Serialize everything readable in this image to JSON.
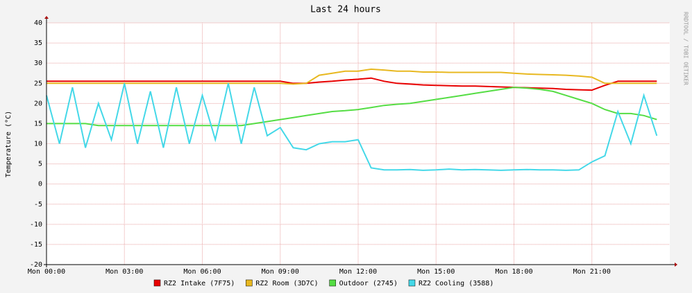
{
  "chart_data": {
    "type": "line",
    "title": "Last 24 hours",
    "y_label": "Temperature (°C)",
    "side_note": "RRDTOOL / TOBI OETIKER",
    "x": [
      0,
      0.5,
      1,
      1.5,
      2,
      2.5,
      3,
      3.5,
      4,
      4.5,
      5,
      5.5,
      6,
      6.5,
      7,
      7.5,
      8,
      8.5,
      9,
      9.5,
      10,
      10.5,
      11,
      11.5,
      12,
      12.5,
      13,
      13.5,
      14,
      14.5,
      15,
      15.5,
      16,
      16.5,
      17,
      17.5,
      18,
      18.5,
      19,
      19.5,
      20,
      20.5,
      21,
      21.5,
      22,
      22.5,
      23,
      23.5
    ],
    "xlim": [
      0,
      24
    ],
    "xticks": [
      {
        "value": 0,
        "label": "Mon 00:00"
      },
      {
        "value": 3,
        "label": "Mon 03:00"
      },
      {
        "value": 6,
        "label": "Mon 06:00"
      },
      {
        "value": 9,
        "label": "Mon 09:00"
      },
      {
        "value": 12,
        "label": "Mon 12:00"
      },
      {
        "value": 15,
        "label": "Mon 15:00"
      },
      {
        "value": 18,
        "label": "Mon 18:00"
      },
      {
        "value": 21,
        "label": "Mon 21:00"
      }
    ],
    "ylim": [
      -20,
      40
    ],
    "yticks": [
      -20,
      -15,
      -10,
      -5,
      0,
      5,
      10,
      15,
      20,
      25,
      30,
      35,
      40
    ],
    "grid": true,
    "series": [
      {
        "name": "RZ2 Intake (7F75)",
        "color": "#e80000",
        "values": [
          25.5,
          25.5,
          25.5,
          25.5,
          25.5,
          25.5,
          25.5,
          25.5,
          25.5,
          25.5,
          25.5,
          25.5,
          25.5,
          25.5,
          25.5,
          25.5,
          25.5,
          25.5,
          25.5,
          25,
          25,
          25.3,
          25.5,
          25.8,
          26,
          26.3,
          25.5,
          25,
          24.8,
          24.6,
          24.5,
          24.4,
          24.3,
          24.3,
          24.2,
          24.1,
          24,
          23.9,
          23.8,
          23.7,
          23.5,
          23.4,
          23.3,
          24.5,
          25.5,
          25.5,
          25.5,
          25.5
        ]
      },
      {
        "name": "RZ2 Room (3D7C)",
        "color": "#e8b820",
        "values": [
          25,
          25,
          25,
          25,
          25,
          25,
          25,
          25,
          25,
          25,
          25,
          25,
          25,
          25,
          25,
          25,
          25,
          25,
          25,
          24.8,
          25,
          27,
          27.5,
          28,
          28,
          28.5,
          28.3,
          28,
          28,
          27.8,
          27.8,
          27.7,
          27.7,
          27.7,
          27.7,
          27.7,
          27.5,
          27.3,
          27.2,
          27.1,
          27,
          26.8,
          26.5,
          25,
          25,
          25,
          25,
          25
        ]
      },
      {
        "name": "Outdoor (2745)",
        "color": "#55dd44",
        "values": [
          15,
          15,
          15,
          15,
          14.5,
          14.5,
          14.5,
          14.5,
          14.5,
          14.5,
          14.5,
          14.5,
          14.5,
          14.5,
          14.5,
          14.5,
          15,
          15.5,
          16,
          16.5,
          17,
          17.5,
          18,
          18.2,
          18.5,
          19,
          19.5,
          19.8,
          20,
          20.5,
          21,
          21.5,
          22,
          22.5,
          23,
          23.5,
          24,
          23.8,
          23.5,
          23,
          22,
          21,
          20,
          18.5,
          17.5,
          17.5,
          17,
          16
        ]
      },
      {
        "name": "RZ2 Cooling (3588)",
        "color": "#44d8e8",
        "values": [
          22,
          10,
          24,
          9,
          20,
          11,
          25,
          10,
          23,
          9,
          24,
          10,
          22,
          11,
          25,
          10,
          24,
          12,
          14,
          9,
          8.5,
          10,
          10.5,
          10.5,
          11,
          4,
          3.5,
          3.5,
          3.6,
          3.4,
          3.5,
          3.7,
          3.5,
          3.6,
          3.5,
          3.4,
          3.5,
          3.6,
          3.5,
          3.5,
          3.4,
          3.5,
          5.5,
          7,
          18,
          10,
          22,
          12
        ]
      }
    ]
  }
}
